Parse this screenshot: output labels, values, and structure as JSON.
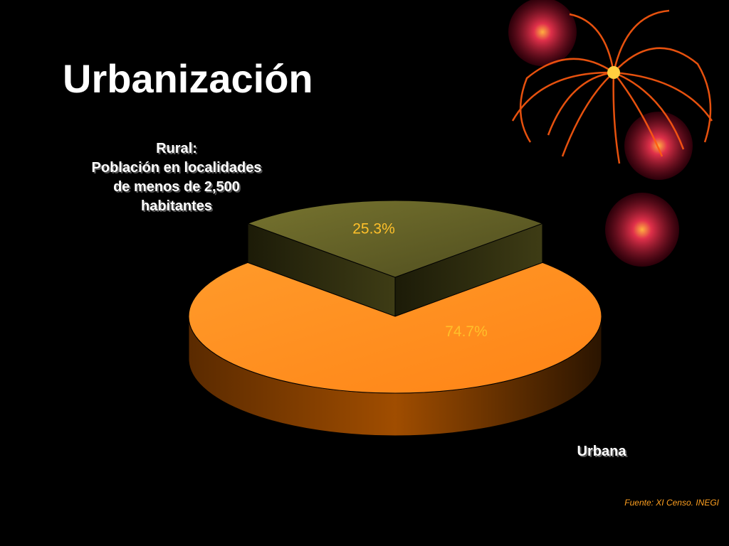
{
  "chart_data": {
    "type": "pie",
    "title": "Urbanización",
    "categories": [
      "Rural:\nPoblación en localidades\nde menos de 2,500\nhabitantes",
      "Urbana"
    ],
    "values": [
      25.3,
      74.7
    ],
    "value_labels": [
      "25.3%",
      "74.7%"
    ],
    "colors": [
      "#6e6b2c",
      "#ff8a1e"
    ],
    "source": "Fuente: XI Censo. INEGI"
  }
}
